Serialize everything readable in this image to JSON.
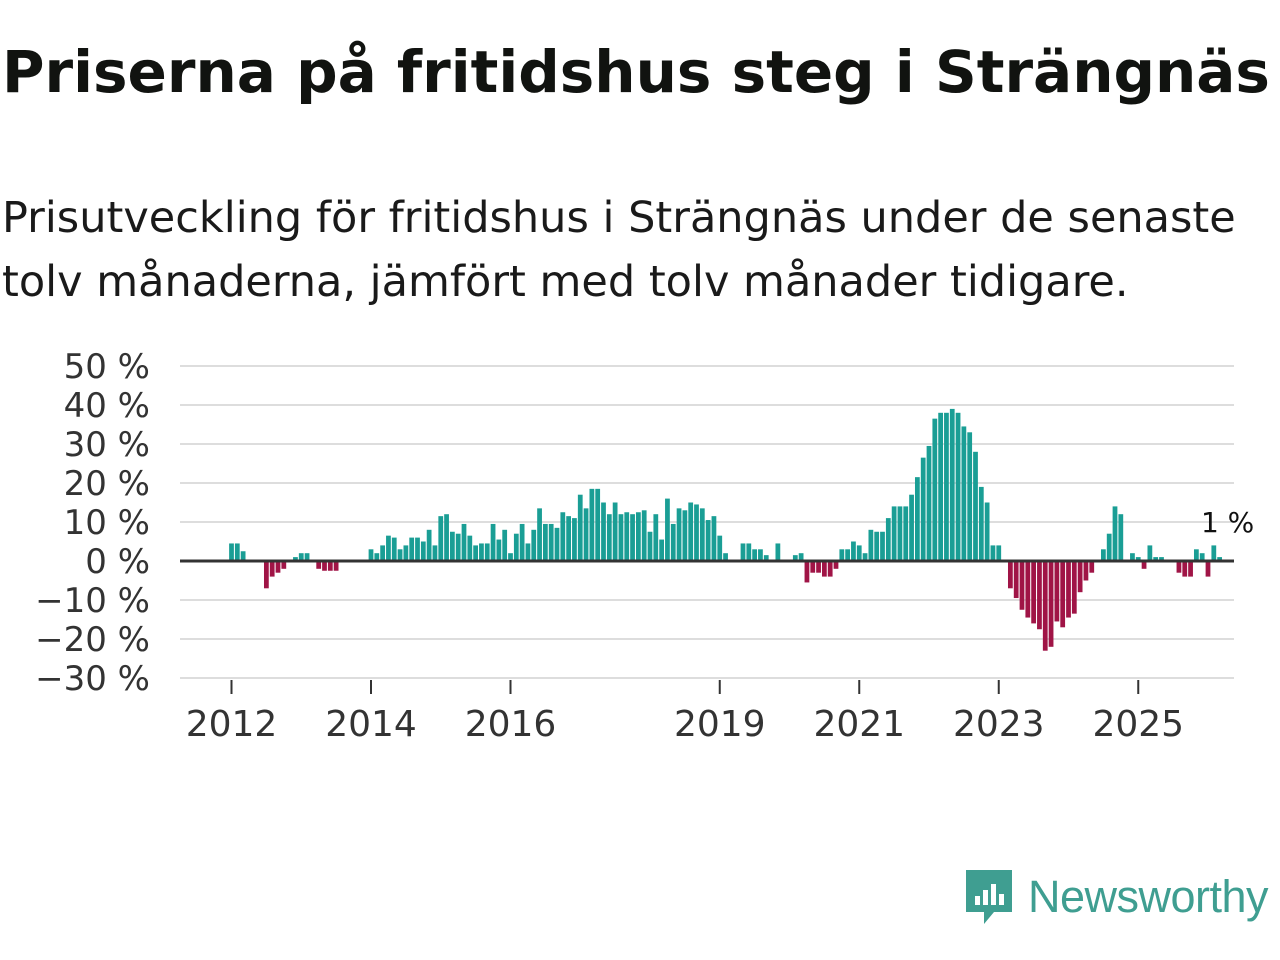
{
  "title": "Priserna på fritidshus steg i Strängnäs",
  "subtitle": "Prisutveckling för fritidshus i Strängnäs under de senaste tolv månaderna, jämfört med tolv månader tidigare.",
  "brand": {
    "name": "Newsworthy",
    "color": "#3f9e91",
    "icon": "newsworthy-logo-icon"
  },
  "colors": {
    "positive": "#1a9e95",
    "negative": "#a01446",
    "grid": "#dddddd",
    "zero_line": "#333333"
  },
  "chart_data": {
    "type": "bar",
    "title": "Priserna på fritidshus steg i Strängnäs",
    "ylabel": "",
    "xlabel": "",
    "ylim": [
      -30,
      50
    ],
    "yticks": [
      50,
      40,
      30,
      20,
      10,
      0,
      -10,
      -20,
      -30
    ],
    "ytick_labels": [
      "50 %",
      "40 %",
      "30 %",
      "20 %",
      "10 %",
      "0 %",
      "−10 %",
      "−20 %",
      "−30 %"
    ],
    "xticks": [
      "2012",
      "2014",
      "2016",
      "2019",
      "2021",
      "2023",
      "2025"
    ],
    "xtick_index": [
      0,
      24,
      48,
      84,
      108,
      132,
      156
    ],
    "start": "2012-01",
    "last_label": "1 %",
    "values": [
      4.5,
      4.5,
      2.5,
      0,
      0,
      0,
      -7,
      -4,
      -3,
      -2,
      0,
      1,
      2,
      2,
      0,
      -2,
      -2.5,
      -2.5,
      -2.5,
      0,
      0,
      0,
      0,
      0,
      3,
      2,
      4,
      6.5,
      6,
      3,
      4,
      6,
      6,
      5,
      8,
      4,
      11.5,
      12,
      7.5,
      7,
      9.5,
      6.5,
      4,
      4.5,
      4.5,
      9.5,
      5.5,
      8,
      2,
      7,
      9.5,
      4.5,
      8,
      13.5,
      9.5,
      9.5,
      8.5,
      12.5,
      11.5,
      11,
      17,
      13.5,
      18.5,
      18.5,
      15,
      12,
      15,
      12,
      12.5,
      12,
      12.5,
      13,
      7.5,
      12,
      5.5,
      16,
      9.5,
      13.5,
      13,
      15,
      14.5,
      13.5,
      10.5,
      11.5,
      6.5,
      2,
      0,
      0,
      4.5,
      4.5,
      3,
      3,
      1.5,
      0,
      4.5,
      0,
      0,
      1.5,
      2,
      -5.5,
      -3,
      -3,
      -4,
      -4,
      -2,
      3,
      3,
      5,
      4,
      2,
      8,
      7.5,
      7.5,
      11,
      14,
      14,
      14,
      17,
      21.5,
      26.5,
      29.5,
      36.5,
      38,
      38,
      39,
      38,
      34.5,
      33,
      28,
      19,
      15,
      4,
      4,
      0,
      -7,
      -9.5,
      -12.5,
      -14.5,
      -16,
      -17.5,
      -23,
      -22,
      -15.5,
      -17,
      -14.5,
      -13.5,
      -8,
      -5,
      -3,
      0,
      3,
      7,
      14,
      12,
      0,
      2,
      1,
      -2,
      4,
      1,
      1,
      0,
      0,
      -3,
      -4,
      -4,
      3,
      2,
      -4,
      4,
      1
    ]
  }
}
